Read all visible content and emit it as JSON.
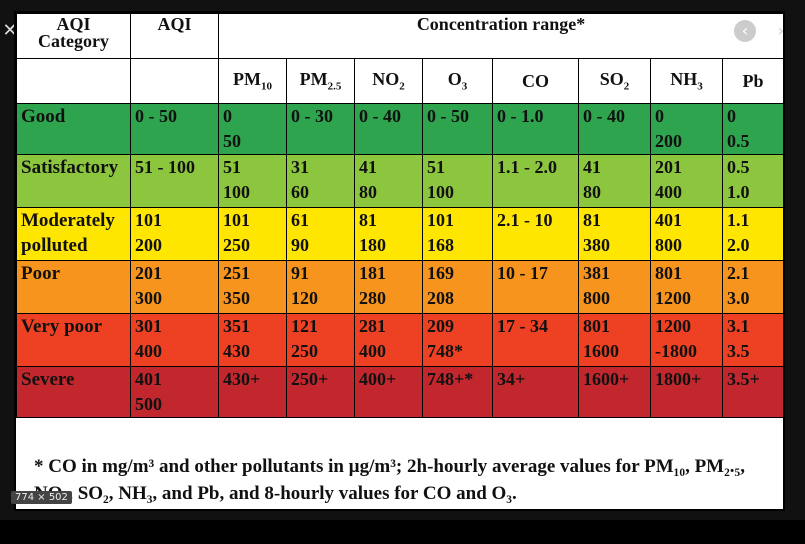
{
  "viewer": {
    "close_glyph": "✕",
    "size_badge": "774 × 502",
    "prev_glyph": "‹",
    "next_glyph": "›"
  },
  "table": {
    "headers": {
      "category_line1": "AQI",
      "category_line2": "Category",
      "aqi": "AQI",
      "concentration": "Concentration range*"
    },
    "pollutants": [
      {
        "main": "PM",
        "sub": "10"
      },
      {
        "main": "PM",
        "sub": "2.5"
      },
      {
        "main": "NO",
        "sub": "2"
      },
      {
        "main": "O",
        "sub": "3"
      },
      {
        "main": "CO",
        "sub": ""
      },
      {
        "main": "SO",
        "sub": "2"
      },
      {
        "main": "NH",
        "sub": "3"
      },
      {
        "main": "Pb",
        "sub": ""
      }
    ],
    "rows": [
      {
        "category": [
          "Good"
        ],
        "aqi": [
          "0 - 50"
        ],
        "cells": [
          [
            "0",
            "50"
          ],
          [
            "0 - 30"
          ],
          [
            "0 - 40"
          ],
          [
            "0 - 50"
          ],
          [
            "0 - 1.0"
          ],
          [
            "0 - 40"
          ],
          [
            "0",
            "200"
          ],
          [
            "0",
            "0.5"
          ]
        ]
      },
      {
        "category": [
          "Satisfactory"
        ],
        "aqi": [
          "51 - 100"
        ],
        "cells": [
          [
            "51",
            "100"
          ],
          [
            "31",
            "60"
          ],
          [
            "41",
            "80"
          ],
          [
            "51",
            "100"
          ],
          [
            "1.1 - 2.0"
          ],
          [
            "41",
            "80"
          ],
          [
            "201",
            "400"
          ],
          [
            "0.5",
            "1.0"
          ]
        ]
      },
      {
        "category": [
          "Moderately",
          "polluted"
        ],
        "aqi": [
          "101",
          "200"
        ],
        "cells": [
          [
            "101",
            "250"
          ],
          [
            "61",
            "90"
          ],
          [
            "81",
            "180"
          ],
          [
            "101",
            "168"
          ],
          [
            "2.1 -  10"
          ],
          [
            "81",
            "380"
          ],
          [
            "401",
            "800"
          ],
          [
            "1.1",
            "2.0"
          ]
        ]
      },
      {
        "category": [
          "Poor"
        ],
        "aqi": [
          "201",
          "300"
        ],
        "cells": [
          [
            "251",
            "350"
          ],
          [
            "91",
            "120"
          ],
          [
            "181",
            "280"
          ],
          [
            "169",
            "208"
          ],
          [
            "10 - 17"
          ],
          [
            "381",
            "800"
          ],
          [
            "801",
            "1200"
          ],
          [
            "2.1",
            "3.0"
          ]
        ]
      },
      {
        "category": [
          "Very poor"
        ],
        "aqi": [
          "301",
          "400"
        ],
        "cells": [
          [
            "351",
            "430"
          ],
          [
            "121",
            "250"
          ],
          [
            "281",
            "400"
          ],
          [
            "209",
            "748*"
          ],
          [
            "17 - 34"
          ],
          [
            "801",
            "1600"
          ],
          [
            "1200",
            "-1800"
          ],
          [
            "3.1",
            "3.5"
          ]
        ]
      },
      {
        "category": [
          "Severe"
        ],
        "aqi": [
          "401",
          "500"
        ],
        "cells": [
          [
            "430+"
          ],
          [
            "250+"
          ],
          [
            "400+"
          ],
          [
            "748+*"
          ],
          [
            "34+"
          ],
          [
            "1600+"
          ],
          [
            "1800+"
          ],
          [
            "3.5+"
          ]
        ]
      }
    ],
    "footnote": "* CO in mg/m³ and other pollutants in µg/m³; 2h-hourly average values for PM₁₀, PM₂.₅, NO₂, SO₂, NH₃, and Pb, and 8-hourly values for CO and O₃."
  }
}
